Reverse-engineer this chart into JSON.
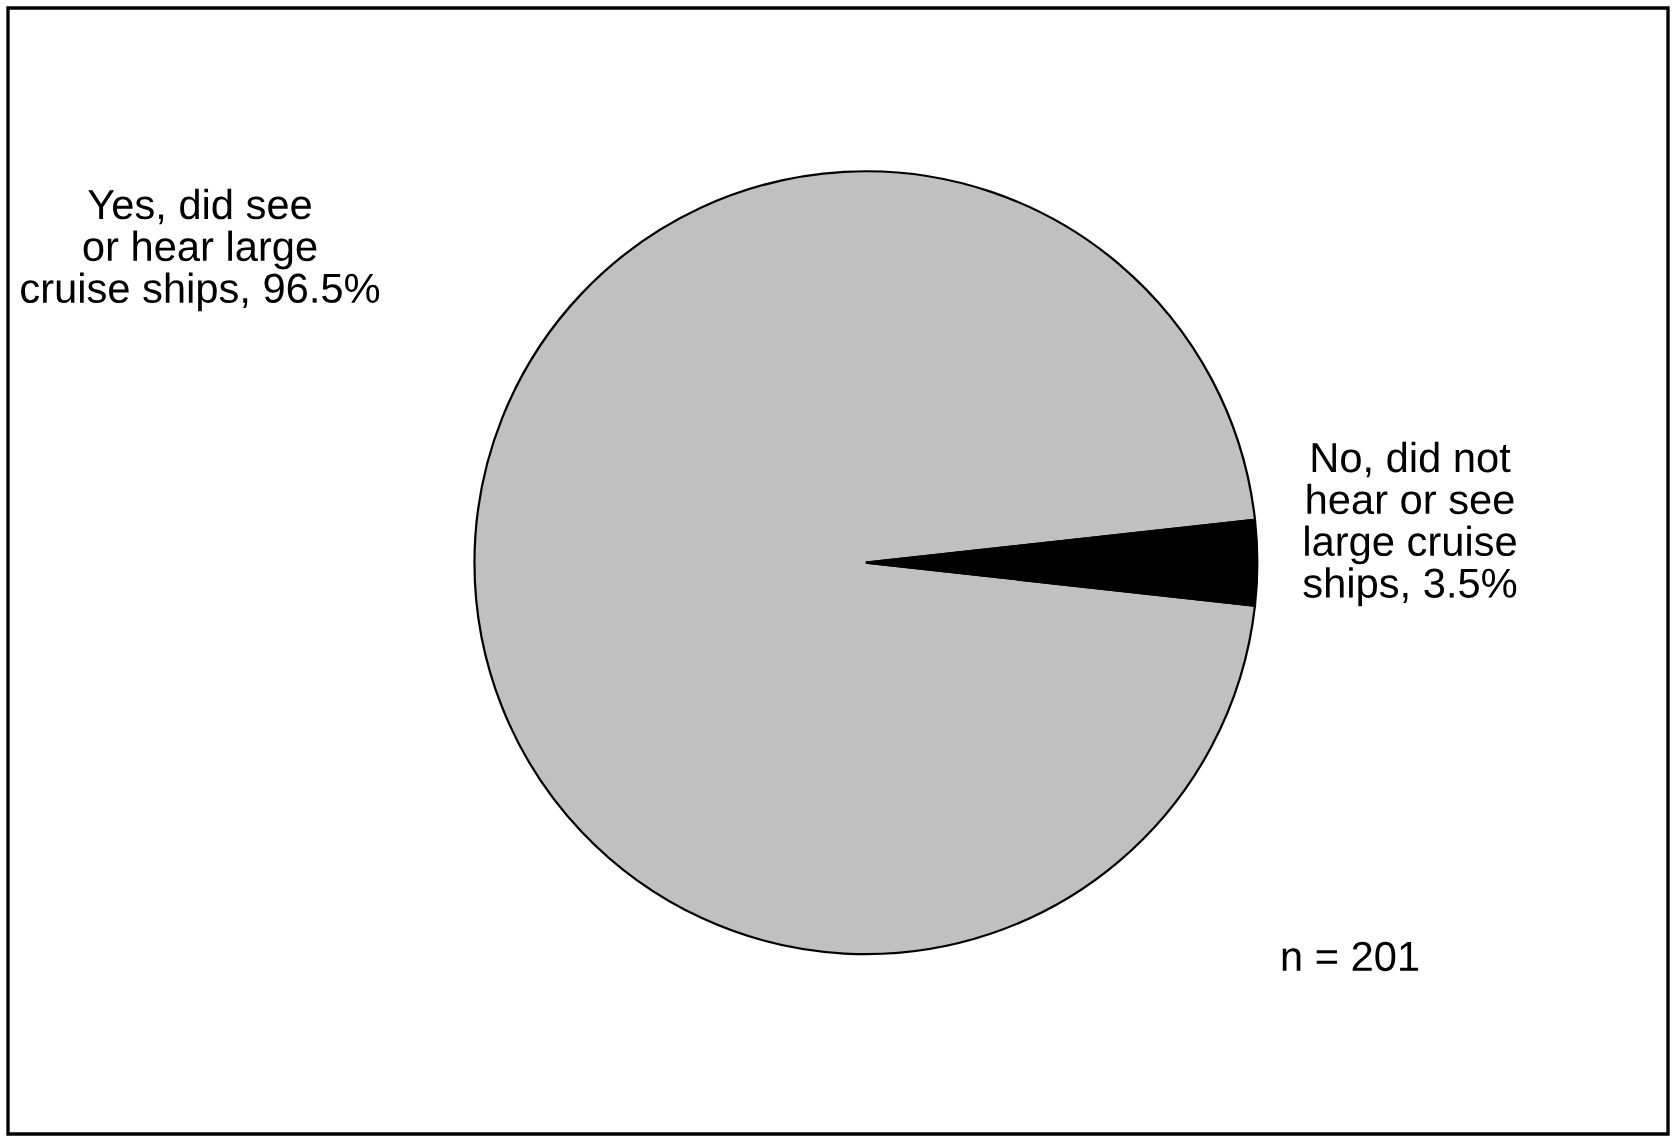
{
  "chart_data": {
    "type": "pie",
    "categories": [
      "Yes, did see\nor hear large\ncruise ships",
      "No, did not\nhear or see\nlarge cruise\nships"
    ],
    "values": [
      96.5,
      3.5
    ],
    "value_labels": [
      "96.5%",
      "3.5%"
    ],
    "colors": [
      "#c0c0c0",
      "#000000"
    ],
    "annotations": [
      "n = 201"
    ],
    "legend": false
  }
}
